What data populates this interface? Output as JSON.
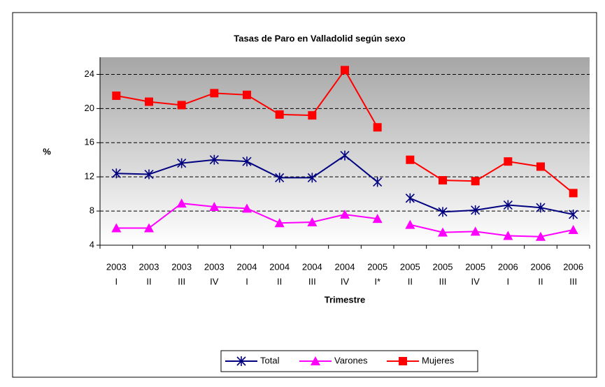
{
  "chart_data": {
    "type": "line",
    "title": "Tasas de Paro en Valladolid según sexo",
    "x_label": "Trimestre",
    "y_label": "%",
    "categories": [
      [
        "2003",
        "I"
      ],
      [
        "2003",
        "II"
      ],
      [
        "2003",
        "III"
      ],
      [
        "2003",
        "IV"
      ],
      [
        "2004",
        "I"
      ],
      [
        "2004",
        "II"
      ],
      [
        "2004",
        "III"
      ],
      [
        "2004",
        "IV"
      ],
      [
        "2005",
        "I*"
      ],
      [
        "2005",
        "II"
      ],
      [
        "2005",
        "III"
      ],
      [
        "2005",
        "IV"
      ],
      [
        "2006",
        "I"
      ],
      [
        "2006",
        "II"
      ],
      [
        "2006",
        "III"
      ]
    ],
    "series": [
      {
        "name": "Total",
        "color": "#000080",
        "marker": "star",
        "values": [
          12.4,
          12.3,
          13.6,
          14.0,
          13.8,
          11.9,
          11.9,
          14.5,
          11.4,
          9.5,
          7.9,
          8.1,
          8.7,
          8.4,
          7.6
        ]
      },
      {
        "name": "Varones",
        "color": "#FF00FF",
        "marker": "triangle",
        "values": [
          6.0,
          6.0,
          8.9,
          8.5,
          8.3,
          6.6,
          6.7,
          7.6,
          7.1,
          6.4,
          5.5,
          5.6,
          5.1,
          5.0,
          5.8
        ]
      },
      {
        "name": "Mujeres",
        "color": "#FF0000",
        "marker": "square",
        "values": [
          21.5,
          20.8,
          20.4,
          21.8,
          21.6,
          19.3,
          19.2,
          24.5,
          17.8,
          14.0,
          11.6,
          11.5,
          13.8,
          13.2,
          10.1
        ]
      }
    ],
    "break_after": 8,
    "ylim": [
      4,
      26
    ],
    "yticks": [
      4,
      8,
      12,
      16,
      20,
      24
    ],
    "grid": true,
    "legend": "bottom"
  }
}
